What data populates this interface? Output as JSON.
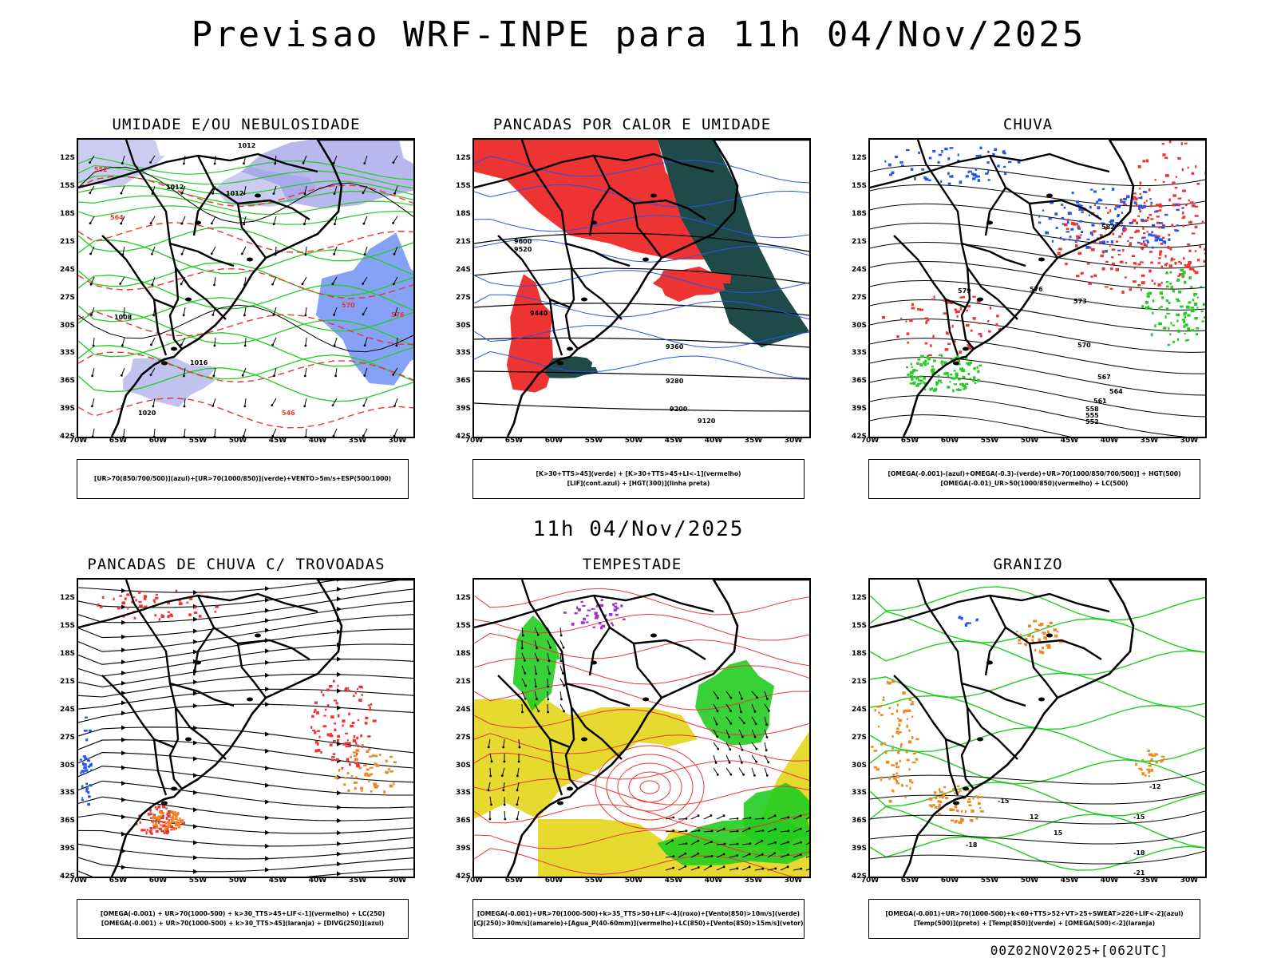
{
  "header": {
    "title": "Previsao WRF-INPE  para 11h 04/Nov/2025"
  },
  "middle": {
    "title": "11h 04/Nov/2025"
  },
  "footer": {
    "run": "00Z02NOV2025+[062UTC]"
  },
  "axes": {
    "lat_labels": [
      "12S",
      "15S",
      "18S",
      "21S",
      "24S",
      "27S",
      "30S",
      "33S",
      "36S",
      "39S",
      "42S"
    ],
    "lon_labels": [
      "70W",
      "65W",
      "60W",
      "55W",
      "50W",
      "45W",
      "40W",
      "35W",
      "30W"
    ]
  },
  "colors": {
    "blue": "#2255ee",
    "green": "#22cc22",
    "red": "#ee3333",
    "orange": "#ee8822",
    "yellow": "#e6d92f",
    "darkteal": "#1f4a4a",
    "lavender": "#9a9ae8",
    "purple": "#9933cc"
  },
  "panels": [
    {
      "id": "umidade",
      "title": "UMIDADE E/OU NEBULOSIDADE",
      "legend": [
        "[UR>70(850/700/500)](azul)+[UR>70(1000/850)](verde)+VENTO>5m/s+ESP(500/1000)"
      ],
      "contour_labels": [
        "1012",
        "1012",
        "1012",
        "1008",
        "1016",
        "1020",
        "570",
        "576",
        "564",
        "552",
        "546"
      ]
    },
    {
      "id": "pancadas",
      "title": "PANCADAS POR CALOR E UMIDADE",
      "legend": [
        "[K>30+TTS>45](verde) + [K>30+TTS>45+LI<-1](vermelho)",
        "[LIF](cont.azul) + [HGT(300)](linha preta)"
      ],
      "contour_labels": [
        "9600",
        "9520",
        "9440",
        "9360",
        "9280",
        "9200",
        "9120"
      ]
    },
    {
      "id": "chuva",
      "title": "CHUVA",
      "legend": [
        "[OMEGA(-0.001)-(azul)+OMEGA(-0.3)-(verde)+UR>70(1000/850/700/500)] + HGT(500)",
        "[OMEGA(-0.01)_UR>50(1000/850)(vermelho) + LC(500)"
      ],
      "contour_labels": [
        "582",
        "579",
        "576",
        "573",
        "570",
        "567",
        "564",
        "561",
        "558",
        "555",
        "552"
      ]
    },
    {
      "id": "trovoadas",
      "title": "PANCADAS DE CHUVA C/ TROVOADAS",
      "legend": [
        "[OMEGA(-0.001) + UR>70(1000-500) + k>30_TTS>45+LIF<-1](vermelho) + LC(250)",
        "[OMEGA(-0.001) + UR>70(1000-500) + k>30_TTS>45](laranja) + [DIVG(250)](azul)"
      ],
      "contour_labels": []
    },
    {
      "id": "tempestade",
      "title": "TEMPESTADE",
      "legend": [
        "[OMEGA(-0.001)+UR>70(1000-500)+k>35_TTS>50+LIF<-4](roxo)+[Vento(850)>10m/s](verde)",
        "[CJ(250)>30m/s](amarelo)+[Agua_P(40-60mm)](vermelho)+LC(850)+[Vento(850)>15m/s](vetor)"
      ],
      "contour_labels": []
    },
    {
      "id": "granizo",
      "title": "GRANIZO",
      "legend": [
        "[OMEGA(-0.001)+UR>70(1000-500)+k<60+TTS>52+VT>25+SWEAT>220+LIF<-2](azul)",
        "[Temp(500)](preto) + [Temp(850)](verde) + [OMEGA(500)<-2](laranja)"
      ],
      "contour_labels": [
        "-12",
        "-15",
        "-15",
        "-18",
        "-18",
        "-21",
        "12",
        "15"
      ]
    }
  ]
}
